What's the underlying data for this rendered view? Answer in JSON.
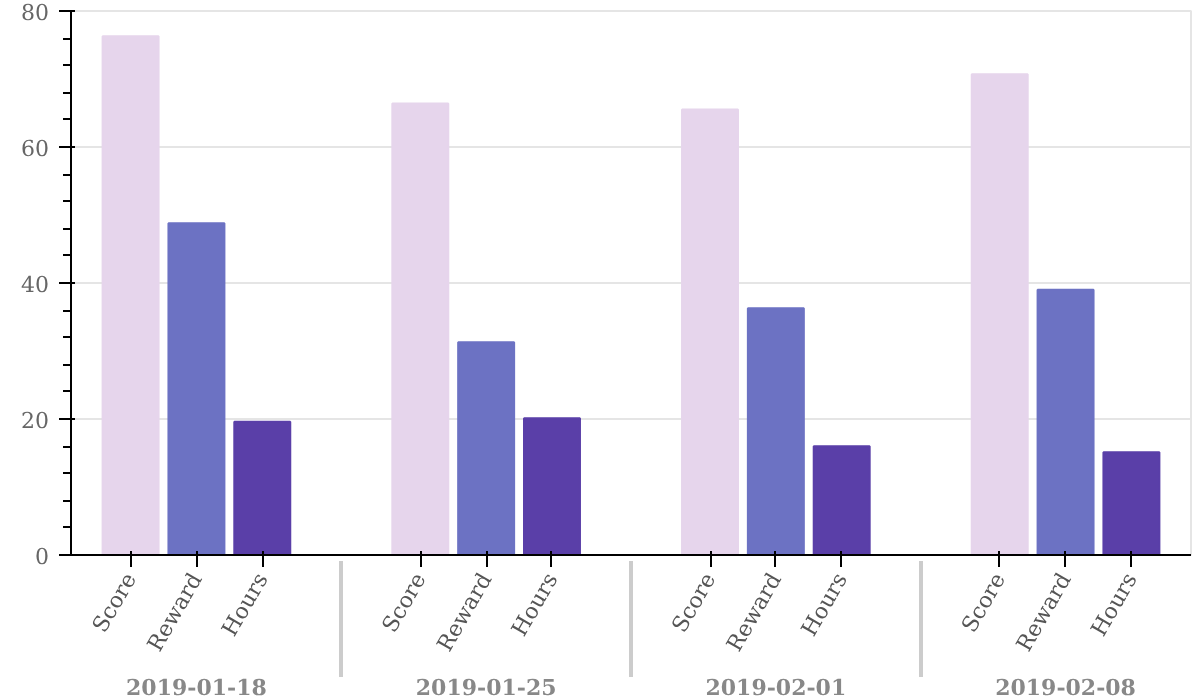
{
  "chart_data": {
    "type": "bar",
    "categories": [
      "2019-01-18",
      "2019-01-25",
      "2019-02-01",
      "2019-02-08"
    ],
    "series": [
      {
        "name": "Score",
        "color": "#e6d5ec",
        "values": [
          76.3,
          66.4,
          65.5,
          70.7
        ]
      },
      {
        "name": "Reward",
        "color": "#6c72c3",
        "values": [
          48.8,
          31.3,
          36.3,
          39.0
        ]
      },
      {
        "name": "Hours",
        "color": "#5a3fa8",
        "values": [
          19.6,
          20.1,
          16.0,
          15.1
        ]
      }
    ],
    "ylim": [
      0,
      80
    ],
    "yticks": [
      0,
      20,
      40,
      60,
      80
    ],
    "grid": "y"
  }
}
